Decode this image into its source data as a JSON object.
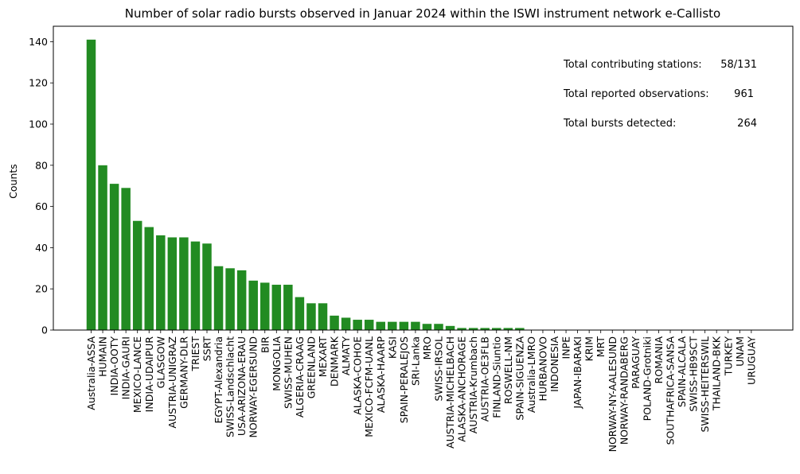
{
  "chart_data": {
    "type": "bar",
    "title": "Number of solar radio bursts observed in Januar 2024 within the ISWI instrument network e-Callisto",
    "xlabel": "",
    "ylabel": "Counts",
    "ylim": [
      0,
      147.5
    ],
    "yticks": [
      0,
      20,
      40,
      60,
      80,
      100,
      120,
      140
    ],
    "bar_color": "#228b22",
    "grid": false,
    "categories": [
      "Australia-ASSA",
      "HUMAIN",
      "INDIA-OOTY",
      "INDIA-GAURI",
      "MEXICO-LANCE",
      "INDIA-UDAIPUR",
      "GLASGOW",
      "AUSTRIA-UNIGRAZ",
      "GERMANY-DLR",
      "TRIEST",
      "SSRT",
      "EGYPT-Alexandria",
      "SWISS-Landschlacht",
      "USA-ARIZONA-ERAU",
      "NORWAY-EGERSUND",
      "BIR",
      "MONGOLIA",
      "SWISS-MUHEN",
      "ALGERIA-CRAAG",
      "GREENLAND",
      "MEXART",
      "DENMARK",
      "ALMATY",
      "ALASKA-COHOE",
      "MEXICO-FCFM-UANL",
      "ALASKA-HAARP",
      "KASI",
      "SPAIN-PERALEJOS",
      "SRI-Lanka",
      "MRO",
      "SWISS-IRSOL",
      "AUSTRIA-MICHELBACH",
      "ALASKA-ANCHORAGE",
      "AUSTRIA-Krumbach",
      "AUSTRIA-OE3FLB",
      "FINLAND-Siuntio",
      "ROSWELL-NM",
      "SPAIN-SIGUENZA",
      "Australia-LMRO",
      "HURBANOVO",
      "INDONESIA",
      "INPE",
      "JAPAN-IBARAKI",
      "KRIM",
      "MRT",
      "NORWAY-NY-AALESUND",
      "NORWAY-RANDABERG",
      "PARAGUAY",
      "POLAND-Grotniki",
      "ROMANIA",
      "SOUTHAFRICA-SANSA",
      "SPAIN-ALCALA",
      "SWISS-HB9SCT",
      "SWISS-HEITERSWIL",
      "THAILAND-BKK",
      "TURKEY",
      "UNAM",
      "URUGUAY"
    ],
    "values": [
      141,
      80,
      71,
      69,
      53,
      50,
      46,
      45,
      45,
      43,
      42,
      31,
      30,
      29,
      24,
      23,
      22,
      22,
      16,
      13,
      13,
      7,
      6,
      5,
      5,
      4,
      4,
      4,
      4,
      3,
      3,
      2,
      1,
      1,
      1,
      1,
      1,
      1,
      0,
      0,
      0,
      0,
      0,
      0,
      0,
      0,
      0,
      0,
      0,
      0,
      0,
      0,
      0,
      0,
      0,
      0,
      0,
      0
    ],
    "annotations": [
      {
        "label": "Total contributing stations:",
        "value": "58/131"
      },
      {
        "label": "Total reported observations:",
        "value": "961"
      },
      {
        "label": "Total bursts detected:",
        "value": "264"
      }
    ]
  }
}
